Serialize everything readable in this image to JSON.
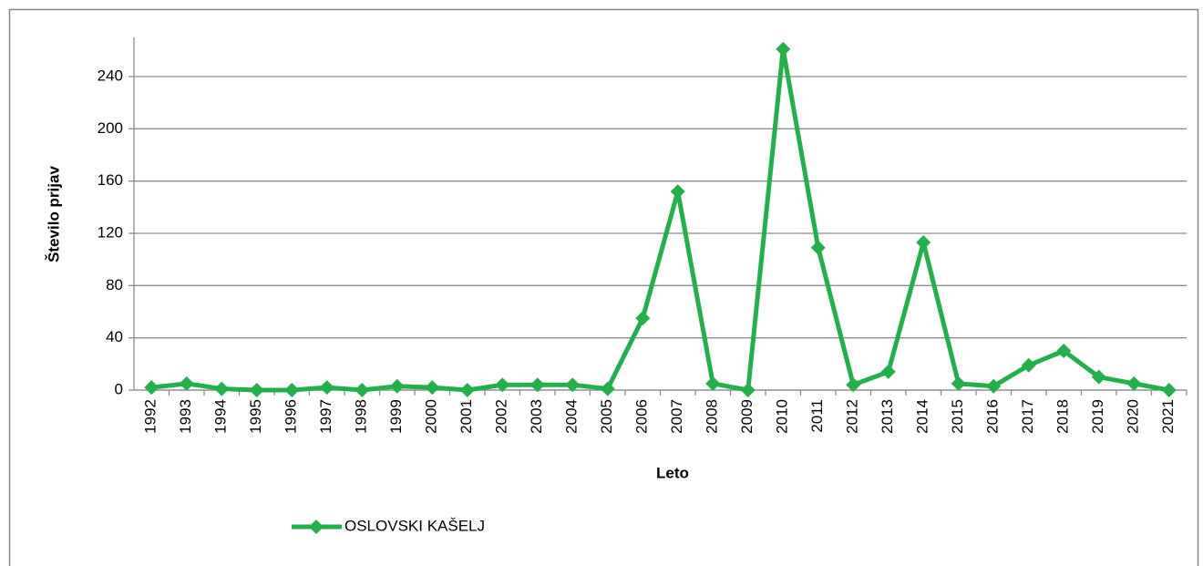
{
  "chart_data": {
    "type": "line",
    "x_label": "Leto",
    "y_label": "Število prijav",
    "categories": [
      "1992",
      "1993",
      "1994",
      "1995",
      "1996",
      "1997",
      "1998",
      "1999",
      "2000",
      "2001",
      "2002",
      "2003",
      "2004",
      "2005",
      "2006",
      "2007",
      "2008",
      "2009",
      "2010",
      "2011",
      "2012",
      "2013",
      "2014",
      "2015",
      "2016",
      "2017",
      "2018",
      "2019",
      "2020",
      "2021"
    ],
    "series": [
      {
        "name": "OSLOVSKI KAŠELJ",
        "color": "#22b04b",
        "values": [
          2,
          5,
          1,
          0,
          0,
          2,
          0,
          3,
          2,
          0,
          4,
          4,
          4,
          1,
          55,
          152,
          5,
          0,
          261,
          109,
          4,
          14,
          113,
          5,
          3,
          19,
          30,
          10,
          5,
          0
        ]
      }
    ],
    "ylim": [
      0,
      270
    ],
    "yticks": [
      0,
      40,
      80,
      120,
      160,
      200,
      240
    ],
    "grid": true,
    "legend": "bottom"
  }
}
